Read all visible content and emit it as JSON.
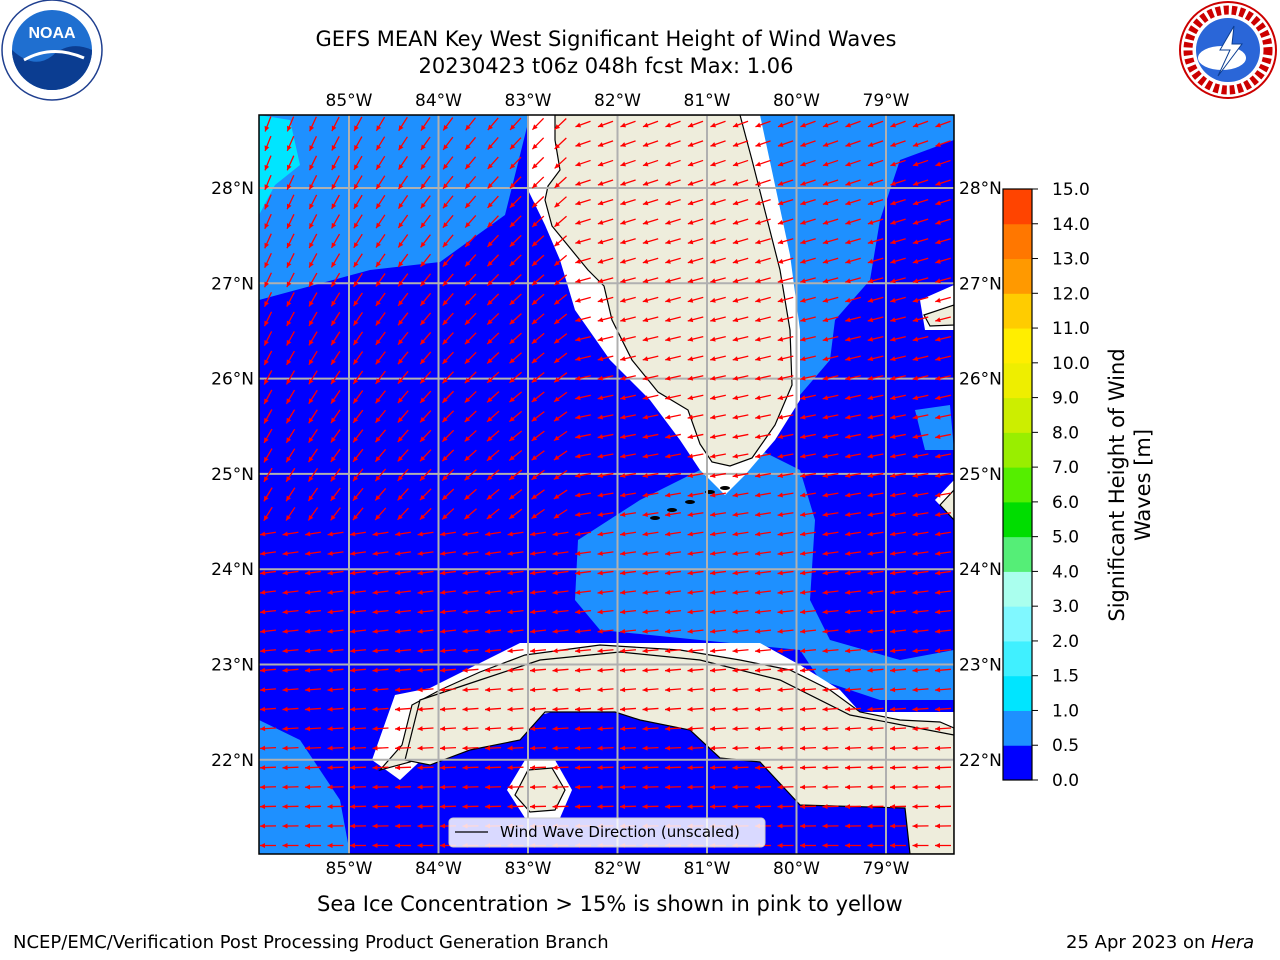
{
  "header": {
    "title_line1": "GEFS MEAN Key West Significant Height of Wind Waves",
    "title_line2": "20230423 t06z 048h fcst   Max: 1.06"
  },
  "map": {
    "lon_labels": [
      "85°W",
      "84°W",
      "83°W",
      "82°W",
      "81°W",
      "80°W",
      "79°W"
    ],
    "lat_labels": [
      "28°N",
      "27°N",
      "26°N",
      "25°N",
      "24°N",
      "23°N",
      "22°N"
    ],
    "land_color": "#eeeddc",
    "arrow_color": "#ff0000",
    "legend_label": "Wind Wave Direction (unscaled)"
  },
  "colorbar": {
    "label": "Significant Height of Wind Waves [m]",
    "label_line1": "Significant Height of Wind",
    "label_line2": "Waves [m]",
    "ticks": [
      "0.0",
      "0.5",
      "1.0",
      "1.5",
      "2.0",
      "3.0",
      "4.0",
      "5.0",
      "6.0",
      "7.0",
      "8.0",
      "9.0",
      "10.0",
      "11.0",
      "12.0",
      "13.0",
      "14.0",
      "15.0"
    ],
    "colors": [
      "#0000ff",
      "#1e90ff",
      "#00e5ff",
      "#40f0ff",
      "#80f8ff",
      "#aaffee",
      "#55ee77",
      "#00dd00",
      "#55ee00",
      "#99ee00",
      "#ccee00",
      "#eeee00",
      "#ffee00",
      "#ffcc00",
      "#ff9900",
      "#ff7700",
      "#ff4400",
      "#ff0000"
    ]
  },
  "notes": {
    "sea_ice": "Sea Ice Concentration > 15% is shown in pink to yellow",
    "producer": "NCEP/EMC/Verification Post Processing Product Generation Branch",
    "date_prefix": "25 Apr 2023 on ",
    "machine": "Hera"
  },
  "logos": {
    "noaa_text": "NOAA",
    "nws_text": "NATIONAL WEATHER SERVICE"
  }
}
